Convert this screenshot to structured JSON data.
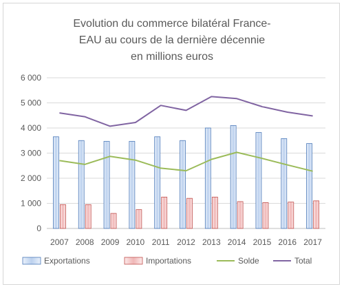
{
  "chart_data": {
    "type": "bar",
    "title_lines": [
      "Evolution du commerce bilatéral France-",
      "EAU au cours de la dernière décennie",
      "en millions euros"
    ],
    "categories": [
      "2007",
      "2008",
      "2009",
      "2010",
      "2011",
      "2012",
      "2013",
      "2014",
      "2015",
      "2016",
      "2017"
    ],
    "ylim": [
      0,
      6000
    ],
    "y_ticks": [
      {
        "value": 0,
        "label": "0"
      },
      {
        "value": 1000,
        "label": "1 000"
      },
      {
        "value": 2000,
        "label": "2 000"
      },
      {
        "value": 3000,
        "label": "3 000"
      },
      {
        "value": 4000,
        "label": "4 000"
      },
      {
        "value": 5000,
        "label": "5 000"
      },
      {
        "value": 6000,
        "label": "6 000"
      }
    ],
    "grid": true,
    "legend_position": "bottom",
    "series": [
      {
        "name": "Exportations",
        "type": "bar",
        "fill_light": "#eaf1fb",
        "fill_dark": "#bcd1ee",
        "stroke": "#4a78b8",
        "values": [
          3650,
          3500,
          3470,
          3470,
          3650,
          3500,
          4000,
          4100,
          3820,
          3580,
          3380
        ]
      },
      {
        "name": "Importations",
        "type": "bar",
        "fill_light": "#fce9e9",
        "fill_dark": "#f0b7b7",
        "stroke": "#c0504d",
        "values": [
          950,
          950,
          600,
          750,
          1250,
          1200,
          1250,
          1070,
          1030,
          1050,
          1100
        ]
      },
      {
        "name": "Solde",
        "type": "line",
        "color": "#9bbb59",
        "values": [
          2700,
          2550,
          2870,
          2720,
          2400,
          2300,
          2750,
          3030,
          2790,
          2530,
          2280
        ]
      },
      {
        "name": "Total",
        "type": "line",
        "color": "#8064a2",
        "values": [
          4600,
          4450,
          4070,
          4220,
          4900,
          4700,
          5250,
          5170,
          4850,
          4630,
          4480
        ]
      }
    ]
  }
}
